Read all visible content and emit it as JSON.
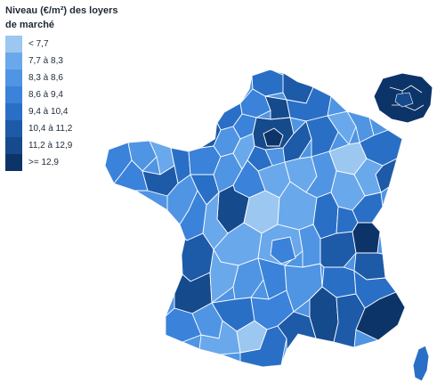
{
  "legend": {
    "title_line1": "Niveau (€/m²) des loyers",
    "title_line2": "de marché",
    "items": [
      {
        "label": "< 7,7",
        "color": "#9cc7f0"
      },
      {
        "label": "7,7 à 8,3",
        "color": "#6aa8ec"
      },
      {
        "label": "8,3 à 8,6",
        "color": "#4f95e3"
      },
      {
        "label": "8,6 à 9,4",
        "color": "#3a82da"
      },
      {
        "label": "9,4 à 10,4",
        "color": "#2a6fc6"
      },
      {
        "label": "10,4 à 11,2",
        "color": "#1d5aa8"
      },
      {
        "label": "11,2 à 12,9",
        "color": "#154a8c"
      },
      {
        "label": ">= 12,9",
        "color": "#0d3468"
      }
    ]
  },
  "map": {
    "subject": "France by département",
    "border_color": "#ffffff"
  }
}
